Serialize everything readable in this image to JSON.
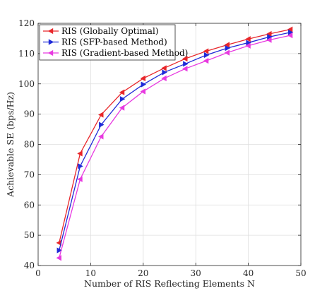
{
  "chart_data": {
    "type": "line",
    "title": "",
    "xlabel": "Number of RIS Reflecting Elements N",
    "ylabel": "Achievable SE (bps/Hz)",
    "xlim": [
      0,
      50
    ],
    "ylim": [
      40,
      120
    ],
    "xticks": [
      0,
      10,
      20,
      30,
      40,
      50
    ],
    "yticks": [
      40,
      50,
      60,
      70,
      80,
      90,
      100,
      110,
      120
    ],
    "grid": true,
    "legend_position": "top-left",
    "x": [
      4,
      8,
      12,
      16,
      20,
      24,
      28,
      32,
      36,
      40,
      44,
      48
    ],
    "series": [
      {
        "name": "RIS (Globally Optimal)",
        "color": "#e8262a",
        "marker": "triangle-left",
        "values": [
          47.5,
          77.0,
          89.8,
          97.2,
          101.8,
          105.2,
          108.3,
          110.8,
          112.9,
          114.8,
          116.5,
          118.0
        ]
      },
      {
        "name": "RIS (SFP-based Method)",
        "color": "#1f2ad8",
        "marker": "triangle-right",
        "values": [
          45.0,
          72.8,
          86.5,
          95.0,
          99.8,
          103.8,
          106.6,
          109.5,
          111.8,
          113.6,
          115.5,
          117.0
        ]
      },
      {
        "name": "RIS (Gradient-based Method)",
        "color": "#e83ae0",
        "marker": "triangle-left",
        "values": [
          42.5,
          68.5,
          82.6,
          92.1,
          97.5,
          101.8,
          105.0,
          107.6,
          110.3,
          112.6,
          114.5,
          116.0
        ]
      }
    ]
  }
}
